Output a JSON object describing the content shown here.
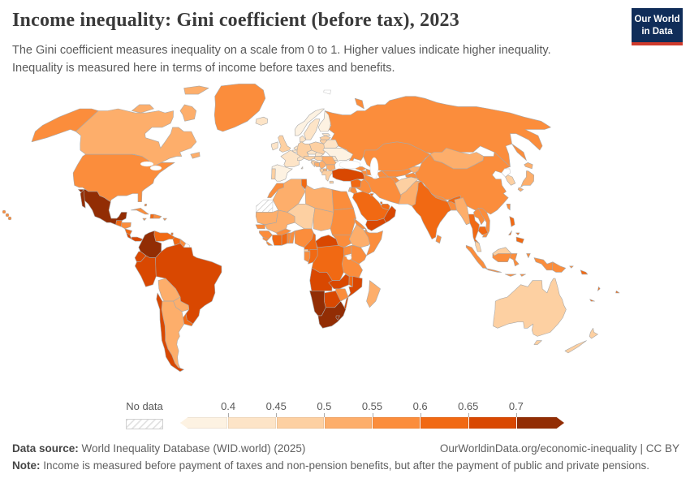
{
  "header": {
    "title": "Income inequality: Gini coefficient (before tax), 2023",
    "subtitle": "The Gini coefficient measures inequality on a scale from 0 to 1. Higher values indicate higher inequality. Inequality is measured here in terms of income before taxes and benefits.",
    "logo": {
      "line1": "Our World",
      "line2": "in Data"
    }
  },
  "legend": {
    "no_data_label": "No data",
    "tick_labels": [
      "0.4",
      "0.45",
      "0.5",
      "0.55",
      "0.6",
      "0.65",
      "0.7"
    ]
  },
  "footer": {
    "source_label": "Data source:",
    "source_text": "World Inequality Database (WID.world) (2025)",
    "link_text": "OurWorldinData.org/economic-inequality | CC BY",
    "note_label": "Note:",
    "note_text": "Income is measured before payment of taxes and non-pension benefits, but after the payment of public and private pensions."
  },
  "map": {
    "border_color": "#a8a8a8",
    "no_data_border": "#c9c9c9",
    "ocean_color": "#ffffff"
  },
  "chart_data": {
    "type": "choropleth_map",
    "title": "Income inequality: Gini coefficient (before tax)",
    "year": "2023",
    "metric": "Gini coefficient (before tax)",
    "scale_note": "0 to 1, higher = more inequality",
    "bins": [
      {
        "range": "<0.4",
        "color": "#fdf2e2"
      },
      {
        "range": "0.4-0.45",
        "color": "#fde4c7"
      },
      {
        "range": "0.45-0.5",
        "color": "#fdd0a2"
      },
      {
        "range": "0.5-0.55",
        "color": "#fdae6b"
      },
      {
        "range": "0.55-0.6",
        "color": "#fb8d3c"
      },
      {
        "range": "0.6-0.65",
        "color": "#f16913"
      },
      {
        "range": "0.65-0.7",
        "color": "#d94801"
      },
      {
        "range": ">0.7",
        "color": "#922d04"
      }
    ],
    "no_data_key": "nd",
    "country_bins": {
      "canada": "b4",
      "usa": "b5",
      "hawaii": "b5",
      "greenland": "b5",
      "mexico": "b8",
      "guatemala": "b6",
      "honduras": "b5",
      "nicaragua": "b6",
      "costarica": "b7",
      "panama": "b7",
      "cuba": "b5",
      "jamaica": "b5",
      "haiti": "b6",
      "dominicanrep": "b5",
      "puertorico": "b5",
      "bahamas": "b5",
      "trinidad": "b6",
      "colombia": "b8",
      "venezuela": "b6",
      "guyana": "b6",
      "suriname": "b5",
      "frenchguiana": "nd",
      "ecuador": "b7",
      "peru": "b7",
      "brazil": "b7",
      "bolivia": "b4",
      "paraguay": "b4",
      "uruguay": "b6",
      "argentina": "b4",
      "chile": "b7",
      "iceland": "b2",
      "norway": "b1",
      "sweden": "b2",
      "finland": "b1",
      "denmark": "b2",
      "uk": "b3",
      "ireland": "b2",
      "netherlands": "b2",
      "belgium": "b2",
      "france": "b2",
      "spain": "b1",
      "portugal": "b3",
      "germany": "b3",
      "switzerland": "b2",
      "austria": "b3",
      "italy": "b4",
      "czechia": "b2",
      "slovakia": "b2",
      "poland": "b3",
      "hungary": "b3",
      "slovenia": "b3",
      "croatia": "b3",
      "bosnia": "b4",
      "serbia": "b4",
      "albania": "b3",
      "macedonia": "b4",
      "greece": "b3",
      "bulgaria": "b4",
      "romania": "b4",
      "moldova": "b2",
      "ukraine": "b1",
      "belarus": "b2",
      "estonia": "b2",
      "latvia": "b3",
      "lithuania": "b3",
      "svalbard": "nd",
      "russia": "b5",
      "kazakhstan": "b5",
      "uzbekistan": "b5",
      "turkmenistan": "b5",
      "kyrgyzstan": "b4",
      "tajikistan": "b5",
      "mongolia": "b4",
      "china": "b5",
      "northkorea": "nd",
      "southkorea": "b3",
      "japan": "b4",
      "taiwan": "b5",
      "india": "b6",
      "pakistan": "b4",
      "afghanistan": "b3",
      "nepal": "b5",
      "bangladesh": "b5",
      "srilanka": "b5",
      "myanmar": "b4",
      "thailand": "b6",
      "laos": "b5",
      "vietnam": "b5",
      "cambodia": "b6",
      "malaysia": "b3",
      "malaysiaborneo": "b3",
      "indonesia": "b5",
      "philippines": "b6",
      "papuanewguinea": "b5",
      "turkey": "b7",
      "georgia": "b5",
      "armenia": "b5",
      "azerbaijan": "b5",
      "syria": "b6",
      "iraq": "b5",
      "jordan": "b5",
      "israel": "b4",
      "saudiarabia": "b6",
      "yemen": "b7",
      "oman": "b7",
      "uae": "b6",
      "kuwait": "b6",
      "qatar": "b6",
      "iran": "b5",
      "morocco": "b5",
      "westernsahara": "ndh",
      "algeria": "b4",
      "tunisia": "b6",
      "libya": "b4",
      "egypt": "b5",
      "mauritania": "b4",
      "mali": "b4",
      "niger": "b3",
      "chad": "b4",
      "sudan": "b5",
      "southsudan": "b5",
      "senegal": "b5",
      "guinea": "b5",
      "sierraleone": "b5",
      "liberia": "b5",
      "cotedivoire": "b6",
      "ghana": "b6",
      "burkinafaso": "b5",
      "togo": "b5",
      "benin": "b5",
      "nigeria": "b5",
      "cameroon": "b6",
      "car": "b7",
      "eritrea": "b5",
      "djibouti": "b5",
      "ethiopia": "b4",
      "somalia": "b5",
      "kenya": "b5",
      "uganda": "b5",
      "rwanda": "b5",
      "tanzania": "b5",
      "drc": "b6",
      "congo": "b6",
      "gabon": "b5",
      "eqguinea": "b3",
      "angola": "b7",
      "zambia": "b7",
      "malawi": "b6",
      "mozambique": "b7",
      "zimbabwe": "b5",
      "botswana": "b7",
      "namibia": "b8",
      "southafrica": "b8",
      "lesotho": "b8",
      "madagascar": "b4",
      "australia": "b3",
      "newzealand": "b3",
      "fiji": "b6",
      "newcaledonia": "b6",
      "vanuatu": "b6",
      "solomonislands": "b6"
    }
  }
}
